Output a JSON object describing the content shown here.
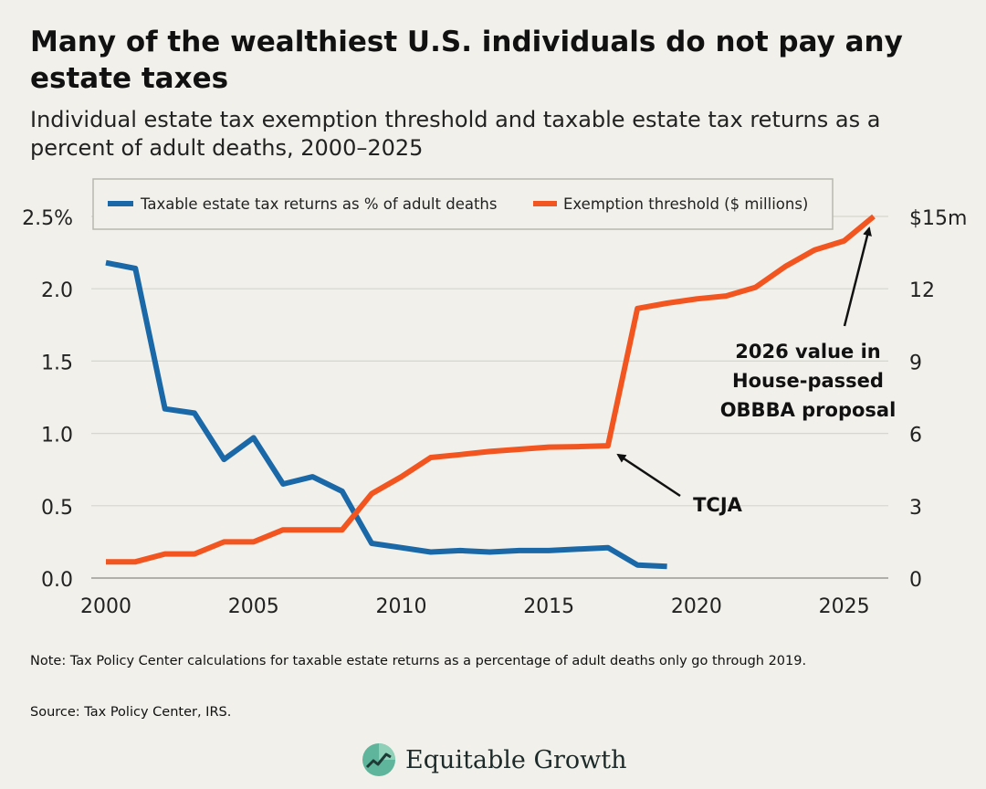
{
  "title": "Many of the wealthiest U.S. individuals do not pay any estate taxes",
  "subtitle": "Individual estate tax exemption threshold and taxable estate tax returns as a percent of adult deaths, 2000–2025",
  "note": "Note: Tax Policy Center calculations for taxable estate returns as a percentage of adult deaths only go through 2019.",
  "source": "Source: Tax Policy Center, IRS.",
  "brand": {
    "name": "Equitable Growth",
    "logo_icon": "growth-chart-leaf-icon"
  },
  "colors": {
    "blue": "#1a68a8",
    "orange": "#f2551f",
    "background": "#f1f0ea",
    "grid": "#d6d5cf"
  },
  "chart_data": {
    "type": "line",
    "x_ticks": [
      2000,
      2005,
      2010,
      2015,
      2020,
      2025
    ],
    "xlim": [
      2000,
      2026
    ],
    "y_left": {
      "ylim": [
        0,
        2.5
      ],
      "tick_values": [
        0,
        0.5,
        1.0,
        1.5,
        2.0,
        2.5
      ],
      "tick_labels": [
        "0.0",
        "0.5",
        "1.0",
        "1.5",
        "2.0",
        "2.5%"
      ]
    },
    "y_right": {
      "ylim": [
        0,
        15
      ],
      "tick_values": [
        0,
        3,
        6,
        9,
        12,
        15
      ],
      "tick_labels": [
        "0",
        "3",
        "6",
        "9",
        "12",
        "$15m"
      ]
    },
    "legend": {
      "position": "top"
    },
    "series": [
      {
        "name": "Taxable estate tax returns as % of adult deaths",
        "axis": "left",
        "color": "#1a68a8",
        "x": [
          2000,
          2001,
          2002,
          2003,
          2004,
          2005,
          2006,
          2007,
          2008,
          2009,
          2010,
          2011,
          2012,
          2013,
          2014,
          2015,
          2016,
          2017,
          2018,
          2019
        ],
        "values": [
          2.18,
          2.14,
          1.17,
          1.14,
          0.82,
          0.97,
          0.65,
          0.7,
          0.6,
          0.24,
          0.21,
          0.18,
          0.19,
          0.18,
          0.19,
          0.19,
          0.2,
          0.21,
          0.09,
          0.08
        ]
      },
      {
        "name": "Exemption threshold ($ millions)",
        "axis": "right",
        "color": "#f2551f",
        "x": [
          2000,
          2001,
          2002,
          2003,
          2004,
          2005,
          2006,
          2007,
          2008,
          2009,
          2010,
          2011,
          2012,
          2013,
          2014,
          2015,
          2016,
          2017,
          2018,
          2019,
          2020,
          2021,
          2022,
          2023,
          2024,
          2025,
          2026
        ],
        "values": [
          0.675,
          0.675,
          1.0,
          1.0,
          1.5,
          1.5,
          2.0,
          2.0,
          2.0,
          3.5,
          4.2,
          5.0,
          5.12,
          5.25,
          5.34,
          5.43,
          5.45,
          5.49,
          11.18,
          11.4,
          11.58,
          11.7,
          12.06,
          12.92,
          13.61,
          13.99,
          15.0
        ]
      }
    ],
    "annotations": [
      {
        "text": "TCJA",
        "target_x": 2017,
        "target_series": "Exemption threshold ($ millions)"
      },
      {
        "lines": [
          "2026 value in",
          "House-passed",
          "OBBBA proposal"
        ],
        "target_x": 2026,
        "target_series": "Exemption threshold ($ millions)"
      }
    ]
  }
}
